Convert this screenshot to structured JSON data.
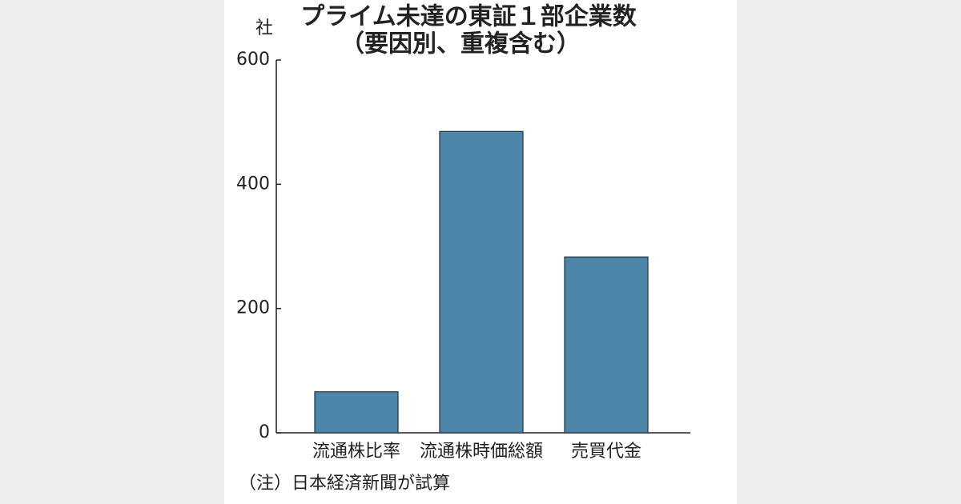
{
  "chart_data": {
    "type": "bar",
    "title": "プライム未達の東証１部企業数",
    "subtitle": "（要因別、重複含む）",
    "y_label": "社",
    "note": "（注）日本経済新聞が試算",
    "categories": [
      "流通株比率",
      "流通株時価総額",
      "売買代金"
    ],
    "values": [
      66,
      485,
      283
    ],
    "color": "#4e86aa",
    "ylim": [
      0,
      600
    ],
    "yticks": [
      0,
      200,
      400,
      600
    ],
    "grid": false
  }
}
